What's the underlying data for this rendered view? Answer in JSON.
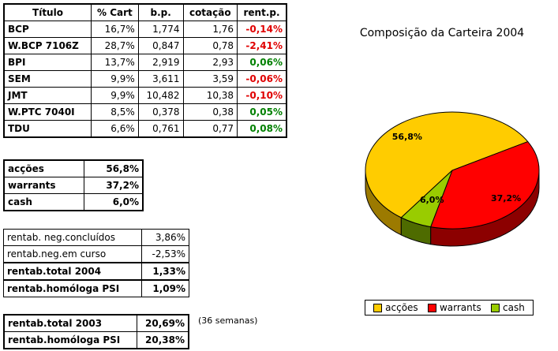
{
  "main_table": {
    "headers": [
      "Título",
      "% Cart",
      "b.p.",
      "cotação",
      "rent.p."
    ],
    "rows": [
      {
        "titulo": "BCP",
        "cart": "16,7%",
        "bp": "1,774",
        "cotacao": "1,76",
        "rent": "-0,14%",
        "sign": "neg"
      },
      {
        "titulo": "W.BCP 7106Z",
        "cart": "28,7%",
        "bp": "0,847",
        "cotacao": "0,78",
        "rent": "-2,41%",
        "sign": "neg"
      },
      {
        "titulo": "BPI",
        "cart": "13,7%",
        "bp": "2,919",
        "cotacao": "2,93",
        "rent": "0,06%",
        "sign": "pos"
      },
      {
        "titulo": "SEM",
        "cart": "9,9%",
        "bp": "3,611",
        "cotacao": "3,59",
        "rent": "-0,06%",
        "sign": "neg"
      },
      {
        "titulo": "JMT",
        "cart": "9,9%",
        "bp": "10,482",
        "cotacao": "10,38",
        "rent": "-0,10%",
        "sign": "neg"
      },
      {
        "titulo": "W.PTC 7040I",
        "cart": "8,5%",
        "bp": "0,378",
        "cotacao": "0,38",
        "rent": "0,05%",
        "sign": "pos"
      },
      {
        "titulo": "TDU",
        "cart": "6,6%",
        "bp": "0,761",
        "cotacao": "0,77",
        "rent": "0,08%",
        "sign": "pos"
      }
    ]
  },
  "allocation_table": [
    {
      "label": "acções",
      "value": "56,8%"
    },
    {
      "label": "warrants",
      "value": "37,2%"
    },
    {
      "label": "cash",
      "value": "6,0%"
    }
  ],
  "returns_table": [
    {
      "label": "rentab. neg.concluídos",
      "value": "3,86%",
      "bold": false
    },
    {
      "label": "rentab.neg.em curso",
      "value": "-2,53%",
      "bold": false
    },
    {
      "label": "rentab.total 2004",
      "value": "1,33%",
      "bold": true
    },
    {
      "label": "rentab.homóloga PSI",
      "value": "1,09%",
      "bold": true
    }
  ],
  "returns_2003": [
    {
      "label": "rentab.total 2003",
      "value": "20,69%"
    },
    {
      "label": "rentab.homóloga PSI",
      "value": "20,38%"
    }
  ],
  "note": "(36 semanas)",
  "chart_data": {
    "type": "pie",
    "title": "Composição da Carteira 2004",
    "slices": [
      {
        "name": "acções",
        "value": 56.8,
        "label": "56,8%",
        "color": "#ffcc00",
        "side_color": "#9c7a00"
      },
      {
        "name": "warrants",
        "value": 37.2,
        "label": "37,2%",
        "color": "#ff0000",
        "side_color": "#8c0000"
      },
      {
        "name": "cash",
        "value": 6.0,
        "label": "6,0%",
        "color": "#99cc00",
        "side_color": "#4e6b00"
      }
    ],
    "legend_position": "bottom"
  }
}
